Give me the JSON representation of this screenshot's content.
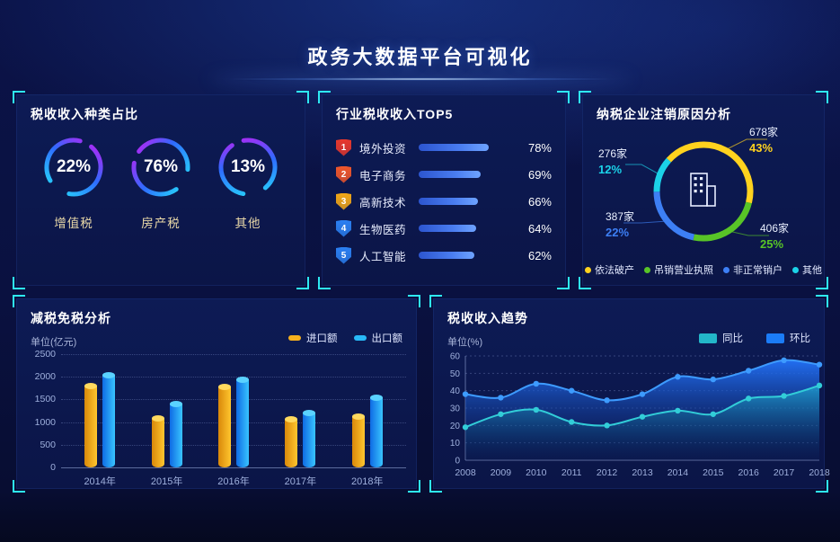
{
  "page": {
    "title": "政务大数据平台可视化"
  },
  "chart_data": [
    {
      "type": "donut-gauges",
      "title": "税收收入种类占比",
      "gauges": [
        {
          "label": "增值税",
          "value": 22,
          "display": "22%"
        },
        {
          "label": "房产税",
          "value": 76,
          "display": "76%"
        },
        {
          "label": "其他",
          "value": 13,
          "display": "13%"
        }
      ]
    },
    {
      "type": "bar",
      "orientation": "horizontal",
      "title": "行业税收收入TOP5",
      "categories": [
        "境外投资",
        "电子商务",
        "高新技术",
        "生物医药",
        "人工智能"
      ],
      "values": [
        78,
        69,
        66,
        64,
        62
      ],
      "value_labels": [
        "78%",
        "69%",
        "66%",
        "64%",
        "62%"
      ],
      "ranks": [
        "1",
        "2",
        "3",
        "4",
        "5"
      ],
      "rank_colors": [
        "#e8382d",
        "#f0562b",
        "#f2a818",
        "#2b80f2",
        "#2b80f2"
      ],
      "xlim": [
        0,
        100
      ]
    },
    {
      "type": "pie",
      "title": "纳税企业注销原因分析",
      "slices": [
        {
          "label": "依法破产",
          "count": "678家",
          "pct": "43%",
          "value": 43,
          "color": "#ffd21e"
        },
        {
          "label": "吊销营业执照",
          "count": "406家",
          "pct": "25%",
          "value": 25,
          "color": "#58c427"
        },
        {
          "label": "非正常销户",
          "count": "387家",
          "pct": "22%",
          "value": 22,
          "color": "#3d7ff5"
        },
        {
          "label": "其他",
          "count": "276家",
          "pct": "12%",
          "value": 12,
          "color": "#1bd2e8"
        }
      ],
      "center_icon": "building-icon"
    },
    {
      "type": "bar",
      "title": "减税免税分析",
      "unit": "单位(亿元)",
      "categories": [
        "2014年",
        "2015年",
        "2016年",
        "2017年",
        "2018年"
      ],
      "series": [
        {
          "name": "进口额",
          "color": "#f5b01e",
          "values": [
            1800,
            1100,
            1780,
            1080,
            1130
          ]
        },
        {
          "name": "出口额",
          "color": "#28b9f7",
          "values": [
            2050,
            1400,
            1950,
            1220,
            1550
          ]
        }
      ],
      "ylim": [
        0,
        2500
      ],
      "yticks": [
        0,
        500,
        1000,
        1500,
        2000,
        2500
      ],
      "grid": "dotted",
      "legend_position": "top-right"
    },
    {
      "type": "area",
      "title": "税收收入趋势",
      "unit": "单位(%)",
      "x": [
        "2008",
        "2009",
        "2010",
        "2011",
        "2012",
        "2013",
        "2014",
        "2015",
        "2016",
        "2017",
        "2018"
      ],
      "series": [
        {
          "name": "同比",
          "color": "#23b7c9",
          "line": "#32cdd8",
          "values": [
            19,
            26.5,
            29,
            22,
            20,
            25,
            28.5,
            26.5,
            35.5,
            37,
            43
          ]
        },
        {
          "name": "环比",
          "color": "#1b7cf7",
          "line": "#3d9bff",
          "values": [
            38,
            36,
            44,
            40,
            34.5,
            38,
            48,
            46.5,
            51.5,
            57.5,
            55
          ]
        }
      ],
      "ylim": [
        0,
        60
      ],
      "yticks": [
        0,
        10,
        20,
        30,
        40,
        50,
        60
      ],
      "grid": "dotted",
      "legend_position": "top-right"
    }
  ]
}
